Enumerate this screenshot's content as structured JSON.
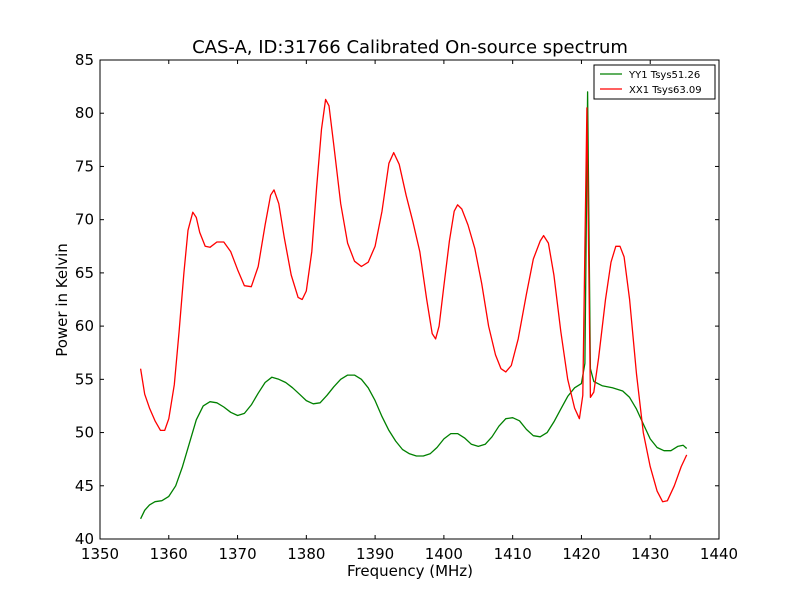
{
  "chart_data": {
    "type": "line",
    "title": "CAS-A, ID:31766 Calibrated On-source spectrum",
    "xlabel": "Frequency (MHz)",
    "ylabel": "Power in Kelvin",
    "xlim": [
      1350,
      1440
    ],
    "ylim": [
      40,
      85
    ],
    "xticks": [
      1350,
      1360,
      1370,
      1380,
      1390,
      1400,
      1410,
      1420,
      1430,
      1440
    ],
    "yticks": [
      40,
      45,
      50,
      55,
      60,
      65,
      70,
      75,
      80,
      85
    ],
    "grid": false,
    "legend": {
      "position": "top-right",
      "entries": [
        "YY1 Tsys51.26",
        "XX1 Tsys63.09"
      ]
    },
    "series": [
      {
        "name": "YY1 Tsys51.26",
        "color": "#008000",
        "points": [
          [
            1355.9,
            41.9
          ],
          [
            1356.5,
            42.7
          ],
          [
            1357.2,
            43.2
          ],
          [
            1358.0,
            43.5
          ],
          [
            1359.0,
            43.6
          ],
          [
            1360.0,
            44.0
          ],
          [
            1361.0,
            45.0
          ],
          [
            1362.0,
            46.8
          ],
          [
            1363.0,
            49.0
          ],
          [
            1364.0,
            51.2
          ],
          [
            1365.0,
            52.5
          ],
          [
            1366.0,
            52.9
          ],
          [
            1367.0,
            52.8
          ],
          [
            1368.0,
            52.4
          ],
          [
            1369.0,
            51.9
          ],
          [
            1370.0,
            51.6
          ],
          [
            1371.0,
            51.8
          ],
          [
            1372.0,
            52.6
          ],
          [
            1373.0,
            53.7
          ],
          [
            1374.0,
            54.7
          ],
          [
            1375.0,
            55.2
          ],
          [
            1376.0,
            55.0
          ],
          [
            1377.0,
            54.7
          ],
          [
            1378.0,
            54.2
          ],
          [
            1379.0,
            53.6
          ],
          [
            1380.0,
            53.0
          ],
          [
            1381.0,
            52.7
          ],
          [
            1382.0,
            52.8
          ],
          [
            1383.0,
            53.5
          ],
          [
            1384.0,
            54.3
          ],
          [
            1385.0,
            55.0
          ],
          [
            1386.0,
            55.4
          ],
          [
            1387.0,
            55.4
          ],
          [
            1388.0,
            55.0
          ],
          [
            1389.0,
            54.2
          ],
          [
            1390.0,
            53.0
          ],
          [
            1391.0,
            51.5
          ],
          [
            1392.0,
            50.2
          ],
          [
            1393.0,
            49.2
          ],
          [
            1394.0,
            48.4
          ],
          [
            1395.0,
            48.0
          ],
          [
            1396.0,
            47.8
          ],
          [
            1397.0,
            47.8
          ],
          [
            1398.0,
            48.0
          ],
          [
            1399.0,
            48.6
          ],
          [
            1400.0,
            49.4
          ],
          [
            1401.0,
            49.9
          ],
          [
            1402.0,
            49.9
          ],
          [
            1403.0,
            49.5
          ],
          [
            1404.0,
            48.9
          ],
          [
            1405.0,
            48.7
          ],
          [
            1406.0,
            48.9
          ],
          [
            1407.0,
            49.6
          ],
          [
            1408.0,
            50.6
          ],
          [
            1409.0,
            51.3
          ],
          [
            1410.0,
            51.4
          ],
          [
            1411.0,
            51.1
          ],
          [
            1412.0,
            50.3
          ],
          [
            1413.0,
            49.7
          ],
          [
            1414.0,
            49.6
          ],
          [
            1415.0,
            50.0
          ],
          [
            1416.0,
            51.0
          ],
          [
            1417.0,
            52.2
          ],
          [
            1418.0,
            53.4
          ],
          [
            1419.0,
            54.2
          ],
          [
            1420.0,
            54.6
          ],
          [
            1420.5,
            56.5
          ],
          [
            1420.9,
            82.0
          ],
          [
            1421.3,
            56.0
          ],
          [
            1421.8,
            54.8
          ],
          [
            1423.0,
            54.4
          ],
          [
            1424.5,
            54.2
          ],
          [
            1426.0,
            53.9
          ],
          [
            1427.0,
            53.3
          ],
          [
            1428.0,
            52.2
          ],
          [
            1429.0,
            50.8
          ],
          [
            1430.0,
            49.4
          ],
          [
            1431.0,
            48.6
          ],
          [
            1432.0,
            48.3
          ],
          [
            1433.0,
            48.3
          ],
          [
            1434.0,
            48.7
          ],
          [
            1434.8,
            48.8
          ],
          [
            1435.3,
            48.5
          ]
        ]
      },
      {
        "name": "XX1 Tsys63.09",
        "color": "#ff0000",
        "points": [
          [
            1355.9,
            56.0
          ],
          [
            1356.5,
            53.6
          ],
          [
            1357.2,
            52.3
          ],
          [
            1358.0,
            51.1
          ],
          [
            1358.8,
            50.2
          ],
          [
            1359.4,
            50.2
          ],
          [
            1360.0,
            51.3
          ],
          [
            1360.8,
            54.5
          ],
          [
            1361.5,
            59.5
          ],
          [
            1362.2,
            65.0
          ],
          [
            1362.8,
            69.0
          ],
          [
            1363.5,
            70.7
          ],
          [
            1364.0,
            70.2
          ],
          [
            1364.5,
            68.8
          ],
          [
            1365.3,
            67.5
          ],
          [
            1366.0,
            67.4
          ],
          [
            1367.0,
            67.9
          ],
          [
            1368.0,
            67.9
          ],
          [
            1369.0,
            67.0
          ],
          [
            1370.0,
            65.3
          ],
          [
            1371.0,
            63.8
          ],
          [
            1372.0,
            63.7
          ],
          [
            1373.0,
            65.6
          ],
          [
            1374.0,
            69.5
          ],
          [
            1374.8,
            72.3
          ],
          [
            1375.3,
            72.8
          ],
          [
            1376.0,
            71.5
          ],
          [
            1376.8,
            68.3
          ],
          [
            1377.8,
            64.8
          ],
          [
            1378.8,
            62.7
          ],
          [
            1379.4,
            62.5
          ],
          [
            1380.0,
            63.3
          ],
          [
            1380.8,
            67.0
          ],
          [
            1381.5,
            73.0
          ],
          [
            1382.2,
            78.5
          ],
          [
            1382.8,
            81.3
          ],
          [
            1383.3,
            80.7
          ],
          [
            1384.0,
            77.0
          ],
          [
            1385.0,
            71.5
          ],
          [
            1386.0,
            67.8
          ],
          [
            1387.0,
            66.1
          ],
          [
            1388.0,
            65.6
          ],
          [
            1389.0,
            66.0
          ],
          [
            1390.0,
            67.5
          ],
          [
            1391.0,
            70.8
          ],
          [
            1392.0,
            75.3
          ],
          [
            1392.7,
            76.3
          ],
          [
            1393.5,
            75.2
          ],
          [
            1394.5,
            72.3
          ],
          [
            1395.5,
            69.8
          ],
          [
            1396.5,
            67.0
          ],
          [
            1397.5,
            62.5
          ],
          [
            1398.3,
            59.3
          ],
          [
            1398.8,
            58.8
          ],
          [
            1399.3,
            60.0
          ],
          [
            1400.0,
            63.8
          ],
          [
            1400.8,
            68.0
          ],
          [
            1401.5,
            70.8
          ],
          [
            1402.0,
            71.4
          ],
          [
            1402.6,
            71.0
          ],
          [
            1403.5,
            69.5
          ],
          [
            1404.5,
            67.3
          ],
          [
            1405.5,
            64.0
          ],
          [
            1406.5,
            60.0
          ],
          [
            1407.5,
            57.3
          ],
          [
            1408.3,
            56.0
          ],
          [
            1409.0,
            55.7
          ],
          [
            1409.8,
            56.3
          ],
          [
            1410.8,
            58.8
          ],
          [
            1412.0,
            63.0
          ],
          [
            1413.0,
            66.3
          ],
          [
            1414.0,
            68.0
          ],
          [
            1414.5,
            68.5
          ],
          [
            1415.2,
            67.8
          ],
          [
            1416.0,
            64.8
          ],
          [
            1417.0,
            59.5
          ],
          [
            1418.0,
            55.0
          ],
          [
            1419.0,
            52.3
          ],
          [
            1419.7,
            51.3
          ],
          [
            1420.2,
            53.5
          ],
          [
            1420.8,
            80.5
          ],
          [
            1421.3,
            53.3
          ],
          [
            1421.8,
            53.8
          ],
          [
            1422.5,
            57.0
          ],
          [
            1423.5,
            62.5
          ],
          [
            1424.3,
            66.0
          ],
          [
            1425.0,
            67.5
          ],
          [
            1425.6,
            67.5
          ],
          [
            1426.2,
            66.5
          ],
          [
            1427.0,
            62.5
          ],
          [
            1428.0,
            55.5
          ],
          [
            1429.0,
            50.0
          ],
          [
            1430.0,
            46.8
          ],
          [
            1431.0,
            44.5
          ],
          [
            1431.8,
            43.5
          ],
          [
            1432.5,
            43.6
          ],
          [
            1433.5,
            45.0
          ],
          [
            1434.5,
            46.8
          ],
          [
            1435.3,
            47.9
          ]
        ]
      }
    ]
  }
}
